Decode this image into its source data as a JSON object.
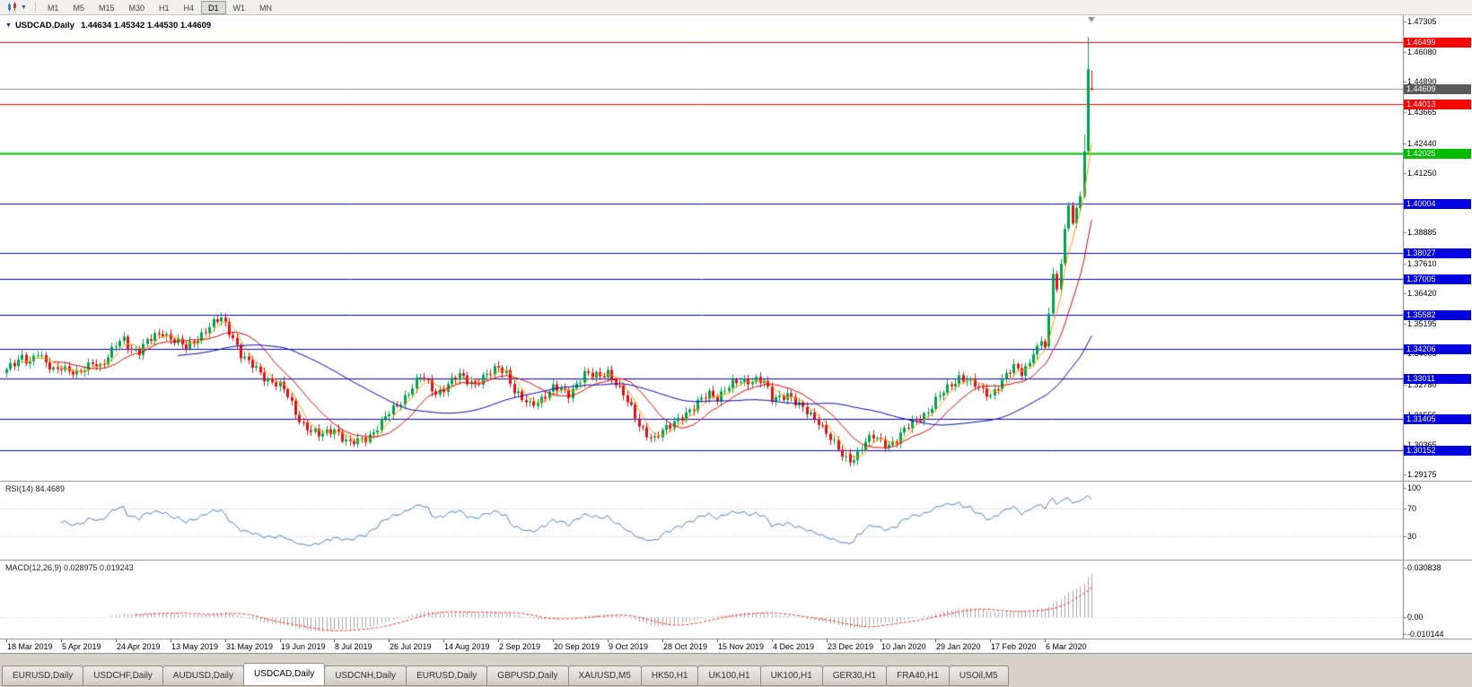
{
  "toolbar": {
    "timeframes": [
      "M1",
      "M5",
      "M15",
      "M30",
      "H1",
      "H4",
      "D1",
      "W1",
      "MN"
    ],
    "active_timeframe": "D1"
  },
  "chart": {
    "title": "USDCAD,Daily",
    "ohlc_text": "1.44634 1.45342 1.44530 1.44609"
  },
  "rsi": {
    "label": "RSI(14) 84.4689",
    "value": 84.4689,
    "ticks": [
      {
        "value": 100,
        "label": "100"
      },
      {
        "value": 70,
        "label": "70"
      },
      {
        "value": 30,
        "label": "30"
      }
    ],
    "levels": [
      70,
      30
    ],
    "line_color": "#4a7fc1"
  },
  "macd": {
    "label": "MACD(12,26,9) 0.028975 0.019243",
    "ticks": [
      {
        "value": 0.030838,
        "label": "0.030838"
      },
      {
        "value": 0,
        "label": "0.00"
      },
      {
        "value": -0.010144,
        "label": "-0.010144"
      }
    ],
    "histogram_color": "#a6a6a6",
    "signal_color": "#ff2a2a"
  },
  "date_axis": [
    "18 Mar 2019",
    "5 Apr 2019",
    "24 Apr 2019",
    "13 May 2019",
    "31 May 2019",
    "19 Jun 2019",
    "8 Jul 2019",
    "26 Jul 2019",
    "14 Aug 2019",
    "2 Sep 2019",
    "20 Sep 2019",
    "9 Oct 2019",
    "28 Oct 2019",
    "15 Nov 2019",
    "4 Dec 2019",
    "23 Dec 2019",
    "10 Jan 2020",
    "29 Jan 2020",
    "17 Feb 2020",
    "6 Mar 2020"
  ],
  "tabs": {
    "items": [
      "EURUSD,Daily",
      "USDCHF,Daily",
      "AUDUSD,Daily",
      "USDCAD,Daily",
      "USDCNH,Daily",
      "EURUSD,Daily",
      "GBPUSD,Daily",
      "XAUUSD,M5",
      "HK50,H1",
      "UK100,H1",
      "UK100,H1",
      "GER30,H1",
      "FRA40,H1",
      "USOil,M5"
    ],
    "active_index": 3
  },
  "chart_data": {
    "type": "candlestick",
    "symbol": "USDCAD",
    "timeframe": "Daily",
    "title_ohlc": {
      "open": 1.44634,
      "high": 1.45342,
      "low": 1.4453,
      "close": 1.44609
    },
    "bars": 279,
    "x_range_dates": [
      "18 Mar 2019",
      "20 Mar 2020"
    ],
    "price_scale": {
      "top": 1.4756,
      "bottom": 1.2892,
      "ticks": [
        {
          "value": 1.47305,
          "label": "1.47305"
        },
        {
          "value": 1.4608,
          "label": "1.46080"
        },
        {
          "value": 1.4489,
          "label": "1.44890"
        },
        {
          "value": 1.43665,
          "label": "1.43665"
        },
        {
          "value": 1.4244,
          "label": "1.42440"
        },
        {
          "value": 1.4125,
          "label": "1.41250"
        },
        {
          "value": 1.4006,
          "label": "1.40060"
        },
        {
          "value": 1.38885,
          "label": "1.38885"
        },
        {
          "value": 1.3761,
          "label": "1.37610"
        },
        {
          "value": 1.3642,
          "label": "1.36420"
        },
        {
          "value": 1.35195,
          "label": "1.35195"
        },
        {
          "value": 1.34005,
          "label": "1.34005"
        },
        {
          "value": 1.3278,
          "label": "1.32780"
        },
        {
          "value": 1.31555,
          "label": "1.31555"
        },
        {
          "value": 1.30365,
          "label": "1.30365"
        },
        {
          "value": 1.29175,
          "label": "1.29175"
        }
      ]
    },
    "close_anchors": [
      [
        0,
        1.333
      ],
      [
        2,
        1.336
      ],
      [
        4,
        1.3395
      ],
      [
        6,
        1.337
      ],
      [
        8,
        1.34
      ],
      [
        10,
        1.3355
      ],
      [
        12,
        1.334
      ],
      [
        14,
        1.3355
      ],
      [
        16,
        1.333
      ],
      [
        18,
        1.331
      ],
      [
        20,
        1.334
      ],
      [
        22,
        1.3375
      ],
      [
        24,
        1.335
      ],
      [
        26,
        1.338
      ],
      [
        28,
        1.3435
      ],
      [
        30,
        1.3465
      ],
      [
        32,
        1.342
      ],
      [
        34,
        1.3405
      ],
      [
        36,
        1.3445
      ],
      [
        38,
        1.3475
      ],
      [
        40,
        1.349
      ],
      [
        42,
        1.346
      ],
      [
        44,
        1.344
      ],
      [
        46,
        1.3425
      ],
      [
        48,
        1.3455
      ],
      [
        50,
        1.348
      ],
      [
        52,
        1.3505
      ],
      [
        54,
        1.353
      ],
      [
        55,
        1.3545
      ],
      [
        56,
        1.352
      ],
      [
        58,
        1.347
      ],
      [
        60,
        1.3395
      ],
      [
        62,
        1.336
      ],
      [
        64,
        1.334
      ],
      [
        66,
        1.331
      ],
      [
        68,
        1.329
      ],
      [
        70,
        1.327
      ],
      [
        72,
        1.323
      ],
      [
        74,
        1.3165
      ],
      [
        76,
        1.312
      ],
      [
        78,
        1.309
      ],
      [
        80,
        1.307
      ],
      [
        82,
        1.3085
      ],
      [
        84,
        1.3105
      ],
      [
        86,
        1.3065
      ],
      [
        88,
        1.3035
      ],
      [
        90,
        1.305
      ],
      [
        92,
        1.3065
      ],
      [
        94,
        1.309
      ],
      [
        96,
        1.3125
      ],
      [
        98,
        1.316
      ],
      [
        100,
        1.3195
      ],
      [
        102,
        1.323
      ],
      [
        104,
        1.327
      ],
      [
        106,
        1.3305
      ],
      [
        108,
        1.328
      ],
      [
        110,
        1.3245
      ],
      [
        112,
        1.3265
      ],
      [
        114,
        1.329
      ],
      [
        116,
        1.331
      ],
      [
        118,
        1.3295
      ],
      [
        120,
        1.3285
      ],
      [
        122,
        1.3305
      ],
      [
        124,
        1.332
      ],
      [
        126,
        1.3345
      ],
      [
        128,
        1.333
      ],
      [
        130,
        1.3255
      ],
      [
        132,
        1.3215
      ],
      [
        134,
        1.319
      ],
      [
        136,
        1.321
      ],
      [
        138,
        1.324
      ],
      [
        140,
        1.3265
      ],
      [
        142,
        1.325
      ],
      [
        144,
        1.3235
      ],
      [
        146,
        1.3285
      ],
      [
        148,
        1.3325
      ],
      [
        150,
        1.331
      ],
      [
        152,
        1.3305
      ],
      [
        154,
        1.333
      ],
      [
        156,
        1.329
      ],
      [
        158,
        1.3235
      ],
      [
        160,
        1.3175
      ],
      [
        162,
        1.3115
      ],
      [
        164,
        1.3085
      ],
      [
        166,
        1.306
      ],
      [
        168,
        1.3085
      ],
      [
        170,
        1.311
      ],
      [
        172,
        1.3145
      ],
      [
        174,
        1.3165
      ],
      [
        176,
        1.318
      ],
      [
        178,
        1.3215
      ],
      [
        180,
        1.3245
      ],
      [
        182,
        1.323
      ],
      [
        184,
        1.3255
      ],
      [
        186,
        1.3275
      ],
      [
        188,
        1.329
      ],
      [
        190,
        1.3295
      ],
      [
        192,
        1.33
      ],
      [
        194,
        1.3285
      ],
      [
        196,
        1.3215
      ],
      [
        198,
        1.323
      ],
      [
        200,
        1.3245
      ],
      [
        202,
        1.3205
      ],
      [
        204,
        1.3175
      ],
      [
        206,
        1.3155
      ],
      [
        208,
        1.3135
      ],
      [
        210,
        1.3085
      ],
      [
        212,
        1.3035
      ],
      [
        214,
        1.299
      ],
      [
        216,
        1.2965
      ],
      [
        218,
        1.301
      ],
      [
        220,
        1.3045
      ],
      [
        222,
        1.3065
      ],
      [
        224,
        1.305
      ],
      [
        226,
        1.304
      ],
      [
        228,
        1.3055
      ],
      [
        230,
        1.309
      ],
      [
        232,
        1.3125
      ],
      [
        234,
        1.315
      ],
      [
        236,
        1.317
      ],
      [
        238,
        1.321
      ],
      [
        240,
        1.3245
      ],
      [
        242,
        1.328
      ],
      [
        244,
        1.331
      ],
      [
        246,
        1.3295
      ],
      [
        248,
        1.327
      ],
      [
        250,
        1.325
      ],
      [
        252,
        1.324
      ],
      [
        254,
        1.3275
      ],
      [
        256,
        1.331
      ],
      [
        258,
        1.3345
      ],
      [
        260,
        1.333
      ],
      [
        262,
        1.337
      ],
      [
        264,
        1.343
      ],
      [
        265,
        1.345
      ],
      [
        266,
        1.3425
      ],
      [
        267,
        1.356
      ],
      [
        268,
        1.372
      ],
      [
        269,
        1.366
      ],
      [
        270,
        1.376
      ],
      [
        271,
        1.39
      ],
      [
        272,
        1.3995
      ],
      [
        273,
        1.392
      ],
      [
        274,
        1.3985
      ],
      [
        275,
        1.403
      ],
      [
        276,
        1.421
      ],
      [
        277,
        1.454
      ],
      [
        278,
        1.44609
      ]
    ],
    "candle_overrides": {
      "55": [
        1.353,
        1.3566,
        1.3512,
        1.3545
      ],
      "216": [
        1.3,
        1.302,
        1.2948,
        1.2965
      ],
      "267": [
        1.343,
        1.3585,
        1.3422,
        1.356
      ],
      "268": [
        1.3562,
        1.3745,
        1.3548,
        1.372
      ],
      "271": [
        1.3762,
        1.3918,
        1.3752,
        1.39
      ],
      "272": [
        1.3902,
        1.4008,
        1.389,
        1.3995
      ],
      "276": [
        1.4032,
        1.4278,
        1.4022,
        1.421
      ],
      "277": [
        1.4212,
        1.4669,
        1.4198,
        1.454
      ],
      "278": [
        1.44634,
        1.45342,
        1.4453,
        1.44609
      ]
    },
    "moving_averages": [
      {
        "period": 5,
        "color": "#ff9c00"
      },
      {
        "period": 13,
        "color": "#e00000"
      },
      {
        "period": 45,
        "color": "#0000bb"
      }
    ],
    "horizontal_lines": [
      {
        "price": 1.46499,
        "label": "1.46499",
        "color": "#ff0000"
      },
      {
        "price": 1.44013,
        "label": "1.44013",
        "color": "#ff0000"
      },
      {
        "price": 1.42025,
        "label": "1.42025",
        "color": "#00bb00"
      },
      {
        "price": 1.40004,
        "label": "1.40004",
        "color": "#0000e0"
      },
      {
        "price": 1.38027,
        "label": "1.38027",
        "color": "#0000e0"
      },
      {
        "price": 1.37005,
        "label": "1.37005",
        "color": "#0000e0"
      },
      {
        "price": 1.35582,
        "label": "1.35582",
        "color": "#0000e0"
      },
      {
        "price": 1.34206,
        "label": "1.34206",
        "color": "#0000e0"
      },
      {
        "price": 1.33011,
        "label": "1.33011",
        "color": "#0000e0"
      },
      {
        "price": 1.31405,
        "label": "1.31405",
        "color": "#0000e0"
      },
      {
        "price": 1.30152,
        "label": "1.30152",
        "color": "#0000e0"
      }
    ],
    "current_price": {
      "value": 1.44609,
      "label": "1.44609",
      "line_color": "#8c8c8c",
      "badge_color": "#5a5a5a"
    },
    "candle_colors": {
      "up": "#00a14b",
      "down": "#e01010"
    },
    "indicator_readings": {
      "rsi": 84.4689,
      "macd": 0.028975,
      "macd_signal": 0.019243
    }
  }
}
